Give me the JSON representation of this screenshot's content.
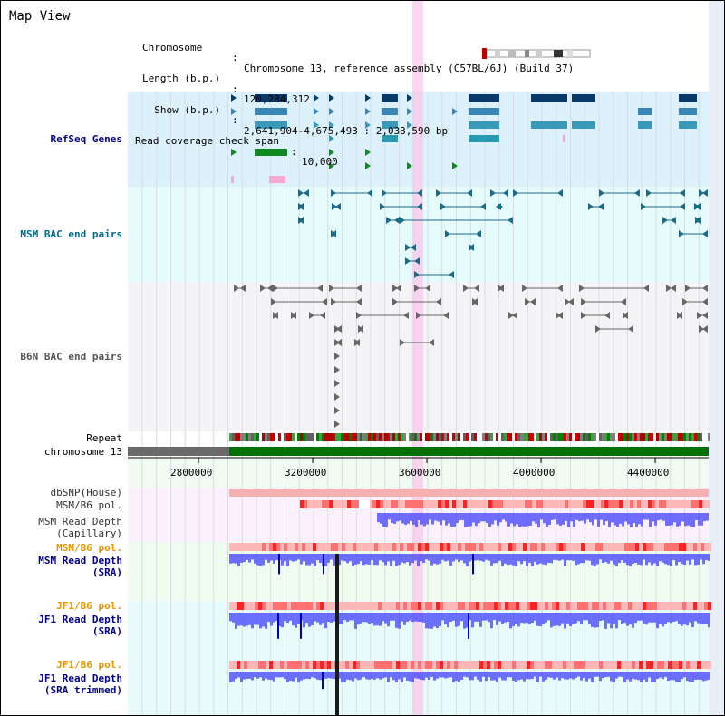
{
  "view": {
    "title": "Map View"
  },
  "info": {
    "rows": [
      {
        "key": "Chromosome",
        "sep": ":",
        "value": "Chromosome 13, reference assembly (C57BL/6J) (Build 37)"
      },
      {
        "key": "Length (b.p.)",
        "sep": ":",
        "value": "120,284,312"
      },
      {
        "key": "  Show (b.p.)",
        "sep": ":",
        "value": "2,641,904-4,675,493 : 2,033,590 bp"
      },
      {
        "key": "Read coverage check span",
        "sep": ":",
        "value": "10,000"
      }
    ]
  },
  "tracks": {
    "refseq": "RefSeq Genes",
    "msm_bac": "MSM BAC end pairs",
    "b6n_bac": "B6N BAC end pairs",
    "repeat": "Repeat",
    "chromosome": "chromosome 13",
    "dbsnp": "dbSNP(House)",
    "msm_b6_pol_1": "MSM/B6 pol.",
    "msm_read_depth_cap_1": "MSM Read Depth",
    "msm_read_depth_cap_2": "(Capillary)",
    "msm_b6_pol_2": "MSM/B6 pol.",
    "msm_read_depth_sra_1": "MSM Read Depth",
    "msm_read_depth_sra_2": "(SRA)",
    "jf1_b6_pol_1": "JF1/B6 pol.",
    "jf1_read_depth_sra_1": "JF1 Read Depth",
    "jf1_read_depth_sra_2": "(SRA)",
    "jf1_b6_pol_2": "JF1/B6 pol.",
    "jf1_read_depth_trim_1": "JF1 Read Depth",
    "jf1_read_depth_trim_2": "(SRA trimmed)"
  },
  "axis": {
    "ticks": [
      2800000,
      3200000,
      3600000,
      4000000,
      4400000
    ],
    "tick_labels": [
      "2800000",
      "3200000",
      "3600000",
      "4000000",
      "4400000"
    ]
  },
  "colors": {
    "refseq_bg": "#dcf1fb",
    "bac_bg": "#e6fbfb",
    "b6n_bg": "#f4f4f6",
    "highlight": "#f8c8ec",
    "chrom_green": "#007000",
    "chrom_gray": "#6a6a6a",
    "depth_blue": "#4040ff",
    "pol_red": "#ff6060"
  }
}
